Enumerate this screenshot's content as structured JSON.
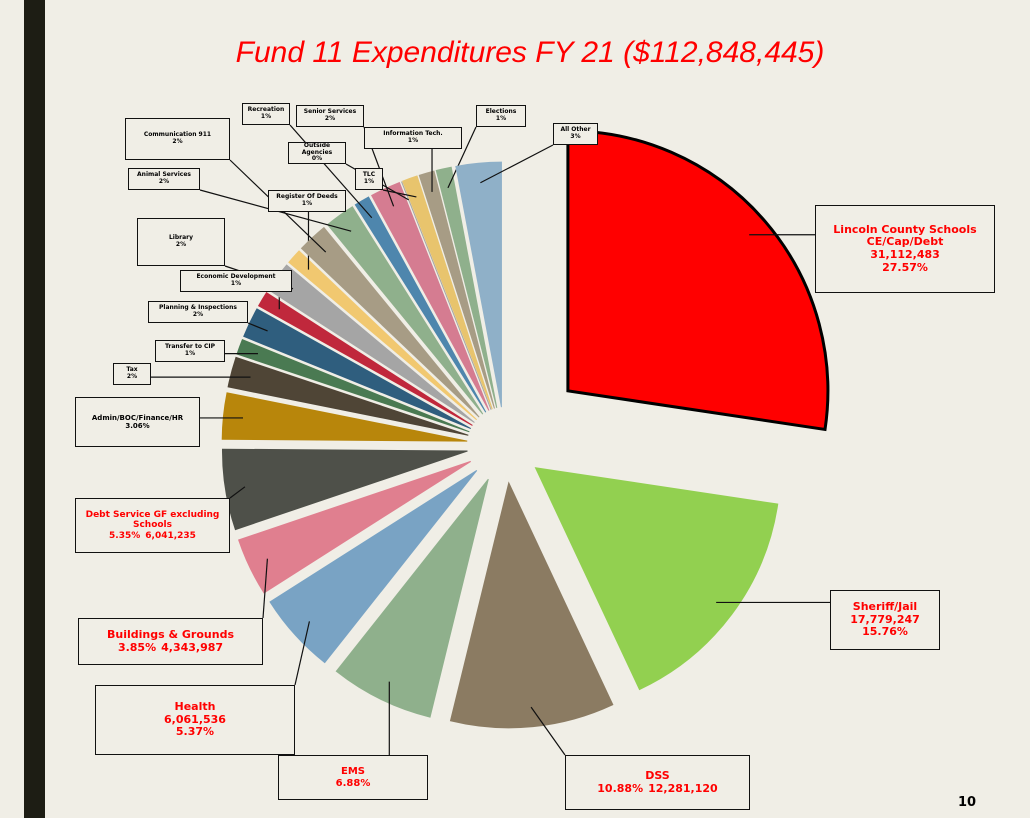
{
  "chart_data": {
    "type": "pie",
    "title": "Fund 11 Expenditures FY 21 ($112,848,445)",
    "categories": [
      "Lincoln County Schools CE/Cap/Debt",
      "Sheriff/Jail",
      "DSS",
      "EMS",
      "Health",
      "Buildings & Grounds",
      "Debt Service GF excluding Schools",
      "Admin/BOC/Finance/HR",
      "Tax",
      "Transfer to CIP",
      "Planning & Inspections",
      "Economic Development",
      "Library",
      "Register Of Deeds",
      "Communication 911",
      "Animal Services",
      "Recreation",
      "Senior Services",
      "Outside Agencies",
      "TLC",
      "Information Tech.",
      "Elections",
      "All Other"
    ],
    "values": [
      27.57,
      15.76,
      10.88,
      6.88,
      5.37,
      3.85,
      5.35,
      3.06,
      2,
      1,
      2,
      1,
      2,
      1,
      2,
      2,
      1,
      2,
      0,
      1,
      1,
      1,
      3
    ],
    "value_labels": [
      "27.57%",
      "15.76%",
      "10.88%",
      "6.88%",
      "5.37%",
      "3.85%",
      "5.35%",
      "3.06%",
      "2%",
      "1%",
      "2%",
      "1%",
      "2%",
      "1%",
      "2%",
      "2%",
      "1%",
      "2%",
      "0%",
      "1%",
      "1%",
      "1%",
      "3%"
    ],
    "amounts": [
      31112483,
      17779247,
      12281120,
      null,
      6061536,
      4343987,
      6041235,
      null,
      null,
      null,
      null,
      null,
      null,
      null,
      null,
      null,
      null,
      null,
      null,
      null,
      null,
      null,
      null
    ],
    "amount_labels": [
      "31,112,483",
      "17,779,247",
      "12,281,120",
      null,
      "6,061,536",
      "4,343,987",
      "6,041,235",
      null,
      null,
      null,
      null,
      null,
      null,
      null,
      null,
      null,
      null,
      null,
      null,
      null,
      null,
      null,
      null
    ],
    "colors": [
      "#ff0000",
      "#92d050",
      "#8b7b62",
      "#8fb08c",
      "#79a3c4",
      "#e07f8f",
      "#4e5049",
      "#b8860b",
      "#4f4536",
      "#4a7a52",
      "#2f5e7e",
      "#c0283c",
      "#a5a5a5",
      "#f1c870",
      "#a79c85",
      "#8fb08c",
      "#4e86ad",
      "#d57c91",
      "#a5a5a5",
      "#e8c46d",
      "#a79c85",
      "#8fb08c",
      "#8fb0c8"
    ],
    "label_colors": [
      "#ff0000",
      "#ff0000",
      "#ff0000",
      "#ff0000",
      "#ff0000",
      "#ff0000",
      "#ff0000",
      "#000000",
      "#000000",
      "#000000",
      "#000000",
      "#000000",
      "#000000",
      "#000000",
      "#000000",
      "#000000",
      "#000000",
      "#000000",
      "#000000",
      "#000000",
      "#000000",
      "#000000",
      "#000000"
    ],
    "page_number": "10"
  }
}
